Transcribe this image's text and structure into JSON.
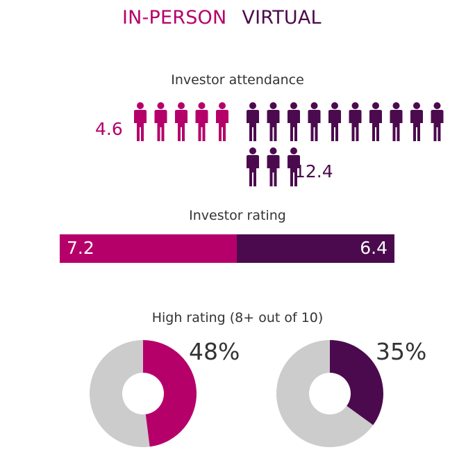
{
  "legend": {
    "in_person": "IN-PERSON",
    "virtual": "VIRTUAL"
  },
  "colors": {
    "in_person": "#b5006a",
    "virtual": "#4b0a4e",
    "remainder": "#cccccc",
    "text": "#333333"
  },
  "chart_data": [
    {
      "type": "bar",
      "title": "Investor attendance",
      "categories": [
        "IN-PERSON",
        "VIRTUAL"
      ],
      "values": [
        4.6,
        12.4
      ],
      "labels": [
        "4.6",
        "12.4"
      ],
      "icon": "person-icon"
    },
    {
      "type": "bar",
      "title": "Investor rating",
      "categories": [
        "IN-PERSON",
        "VIRTUAL"
      ],
      "values": [
        7.2,
        6.4
      ],
      "labels": [
        "7.2",
        "6.4"
      ],
      "stacked": true
    },
    {
      "type": "pie",
      "title": "High rating (8+ out of 10)",
      "categories": [
        "IN-PERSON",
        "VIRTUAL"
      ],
      "values": [
        48,
        35
      ],
      "labels": [
        "48%",
        "35%"
      ],
      "donut": true
    }
  ]
}
